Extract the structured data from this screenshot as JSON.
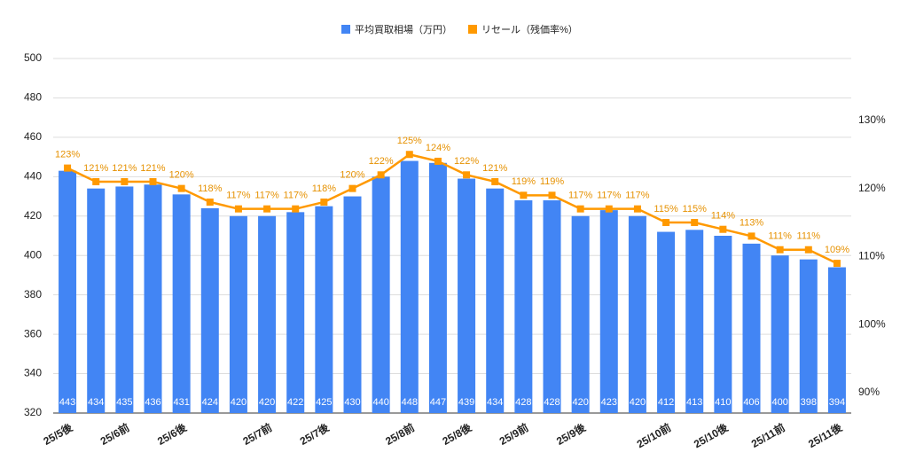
{
  "chart_data": {
    "type": "bar-line",
    "categories": [
      "25/5後",
      null,
      "25/6前",
      null,
      "25/6後",
      null,
      null,
      "25/7前",
      null,
      "25/7後",
      null,
      null,
      "25/8前",
      null,
      "25/8後",
      null,
      "25/9前",
      null,
      "25/9後",
      null,
      null,
      "25/10前",
      null,
      "25/10後",
      null,
      "25/11前",
      null,
      "25/11後"
    ],
    "series": [
      {
        "name": "平均買取相場（万円）",
        "type": "bar",
        "color": "#4285f4",
        "values": [
          443,
          434,
          435,
          436,
          431,
          424,
          420,
          420,
          422,
          425,
          430,
          440,
          448,
          447,
          439,
          434,
          428,
          428,
          420,
          423,
          420,
          412,
          413,
          410,
          406,
          400,
          398,
          394
        ]
      },
      {
        "name": "リセール（残価率%）",
        "type": "line",
        "axis": "y2",
        "color": "#ff9900",
        "values": [
          123,
          121,
          121,
          121,
          120,
          118,
          117,
          117,
          117,
          118,
          120,
          122,
          125,
          124,
          122,
          121,
          119,
          119,
          117,
          117,
          117,
          115,
          115,
          114,
          113,
          111,
          111,
          109
        ],
        "value_labels": [
          "123%",
          "121%",
          "121%",
          "121%",
          "120%",
          "118%",
          "117%",
          "117%",
          "117%",
          "118%",
          "120%",
          "122%",
          "125%",
          "124%",
          "122%",
          "121%",
          "119%",
          "119%",
          "117%",
          "117%",
          "117%",
          "115%",
          "115%",
          "114%",
          "113%",
          "111%",
          "111%",
          "109%"
        ]
      }
    ],
    "ylim": [
      320,
      500
    ],
    "yticks": [
      320,
      340,
      360,
      380,
      400,
      420,
      440,
      460,
      480,
      500
    ],
    "y2lim": [
      87,
      139.1
    ],
    "y2ticks": [
      {
        "value": 90,
        "label": "90%"
      },
      {
        "value": 100,
        "label": "100%"
      },
      {
        "value": 110,
        "label": "110%"
      },
      {
        "value": 120,
        "label": "120%"
      },
      {
        "value": 130,
        "label": "130%"
      }
    ],
    "grid": true,
    "legend": "top"
  }
}
